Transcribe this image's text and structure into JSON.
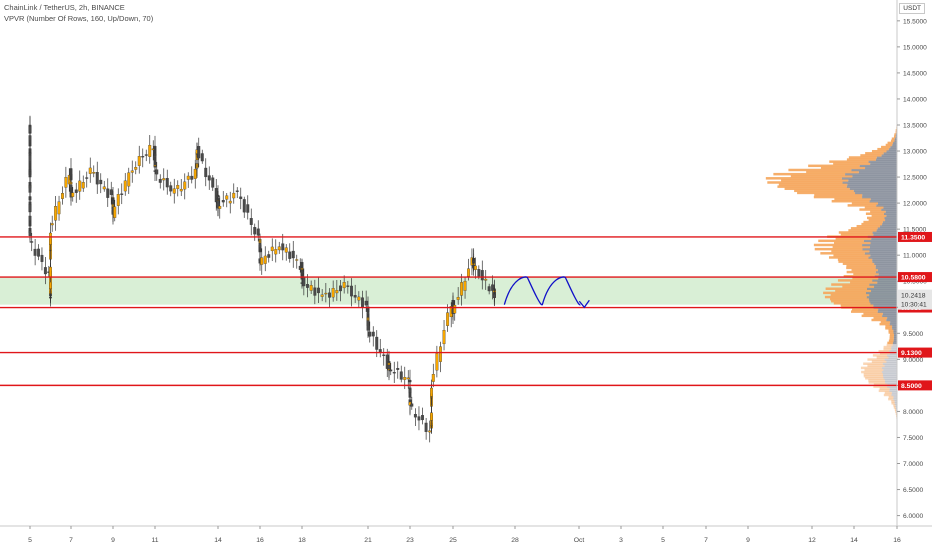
{
  "header": {
    "title": "ChainLink / TetherUS, 2h, BINANCE",
    "indicator": "VPVR (Number Of Rows, 160, Up/Down, 70)"
  },
  "axis": {
    "currency": "USDT"
  },
  "chart_data": {
    "type": "candlestick",
    "title": "ChainLink / TetherUS, 2h, BINANCE",
    "ylim": [
      5.8,
      15.9
    ],
    "y_ticks": [
      "6.0000",
      "6.5000",
      "7.0000",
      "7.5000",
      "8.0000",
      "8.5000",
      "9.0000",
      "9.5000",
      "10.0000",
      "10.5000",
      "11.0000",
      "11.5000",
      "12.0000",
      "12.5000",
      "13.0000",
      "13.5000",
      "14.0000",
      "14.5000",
      "15.0000",
      "15.5000"
    ],
    "x_ticks": [
      "5",
      "7",
      "9",
      "11",
      "14",
      "16",
      "18",
      "21",
      "23",
      "25",
      "28",
      "Oct",
      "3",
      "5",
      "7",
      "9",
      "12",
      "14",
      "16"
    ],
    "price_path": [
      [
        "5",
        13.55
      ],
      [
        "5",
        12.7
      ],
      [
        "5",
        12.2
      ],
      [
        "5",
        11.3
      ],
      [
        "6",
        10.6
      ],
      [
        "6",
        10.2
      ],
      [
        "6",
        11.5
      ],
      [
        "7",
        12.6
      ],
      [
        "7",
        12.1
      ],
      [
        "8",
        12.6
      ],
      [
        "9",
        12.1
      ],
      [
        "9",
        11.8
      ],
      [
        "10",
        12.7
      ],
      [
        "11",
        13.1
      ],
      [
        "11",
        12.6
      ],
      [
        "12",
        12.2
      ],
      [
        "13",
        12.6
      ],
      [
        "13",
        13.05
      ],
      [
        "14",
        12.1
      ],
      [
        "14",
        11.95
      ],
      [
        "15",
        12.2
      ],
      [
        "16",
        11.3
      ],
      [
        "16",
        10.85
      ],
      [
        "17",
        11.2
      ],
      [
        "18",
        10.8
      ],
      [
        "18",
        10.5
      ],
      [
        "19",
        10.2
      ],
      [
        "20",
        10.4
      ],
      [
        "21",
        10.0
      ],
      [
        "21",
        9.6
      ],
      [
        "22",
        8.9
      ],
      [
        "22",
        8.85
      ],
      [
        "23",
        8.6
      ],
      [
        "23",
        8.1
      ],
      [
        "24",
        7.6
      ],
      [
        "24",
        8.5
      ],
      [
        "25",
        10.1
      ],
      [
        "25",
        9.9
      ],
      [
        "26",
        10.9
      ],
      [
        "26",
        10.8
      ],
      [
        "27",
        10.3
      ],
      [
        "27",
        10.24
      ]
    ],
    "projection": "wave",
    "levels": [
      {
        "label": "11.3500",
        "value": 11.35
      },
      {
        "label": "10.5800",
        "value": 10.58
      },
      {
        "label": "9.9950",
        "value": 9.995
      },
      {
        "label": "9.1300",
        "value": 9.13
      },
      {
        "label": "8.5000",
        "value": 8.5
      }
    ],
    "zone": [
      10.05,
      10.58
    ],
    "current_price": "10.2418",
    "countdown": "10:30:41",
    "volume_profile": {
      "rows": 160,
      "peaks": [
        {
          "price": 12.45,
          "level": 0.9
        },
        {
          "price": 11.2,
          "level": 0.55
        },
        {
          "price": 10.25,
          "level": 0.5
        },
        {
          "price": 8.8,
          "level": 0.25
        }
      ]
    },
    "grid": false,
    "colors": {
      "up": "#f7a600",
      "down": "#4a4a4a",
      "levels": "#e0161a",
      "zone": "#d9efd6",
      "projection": "#1010c8",
      "profile_up": "#f5a55a",
      "profile_down": "#7d8592"
    }
  }
}
